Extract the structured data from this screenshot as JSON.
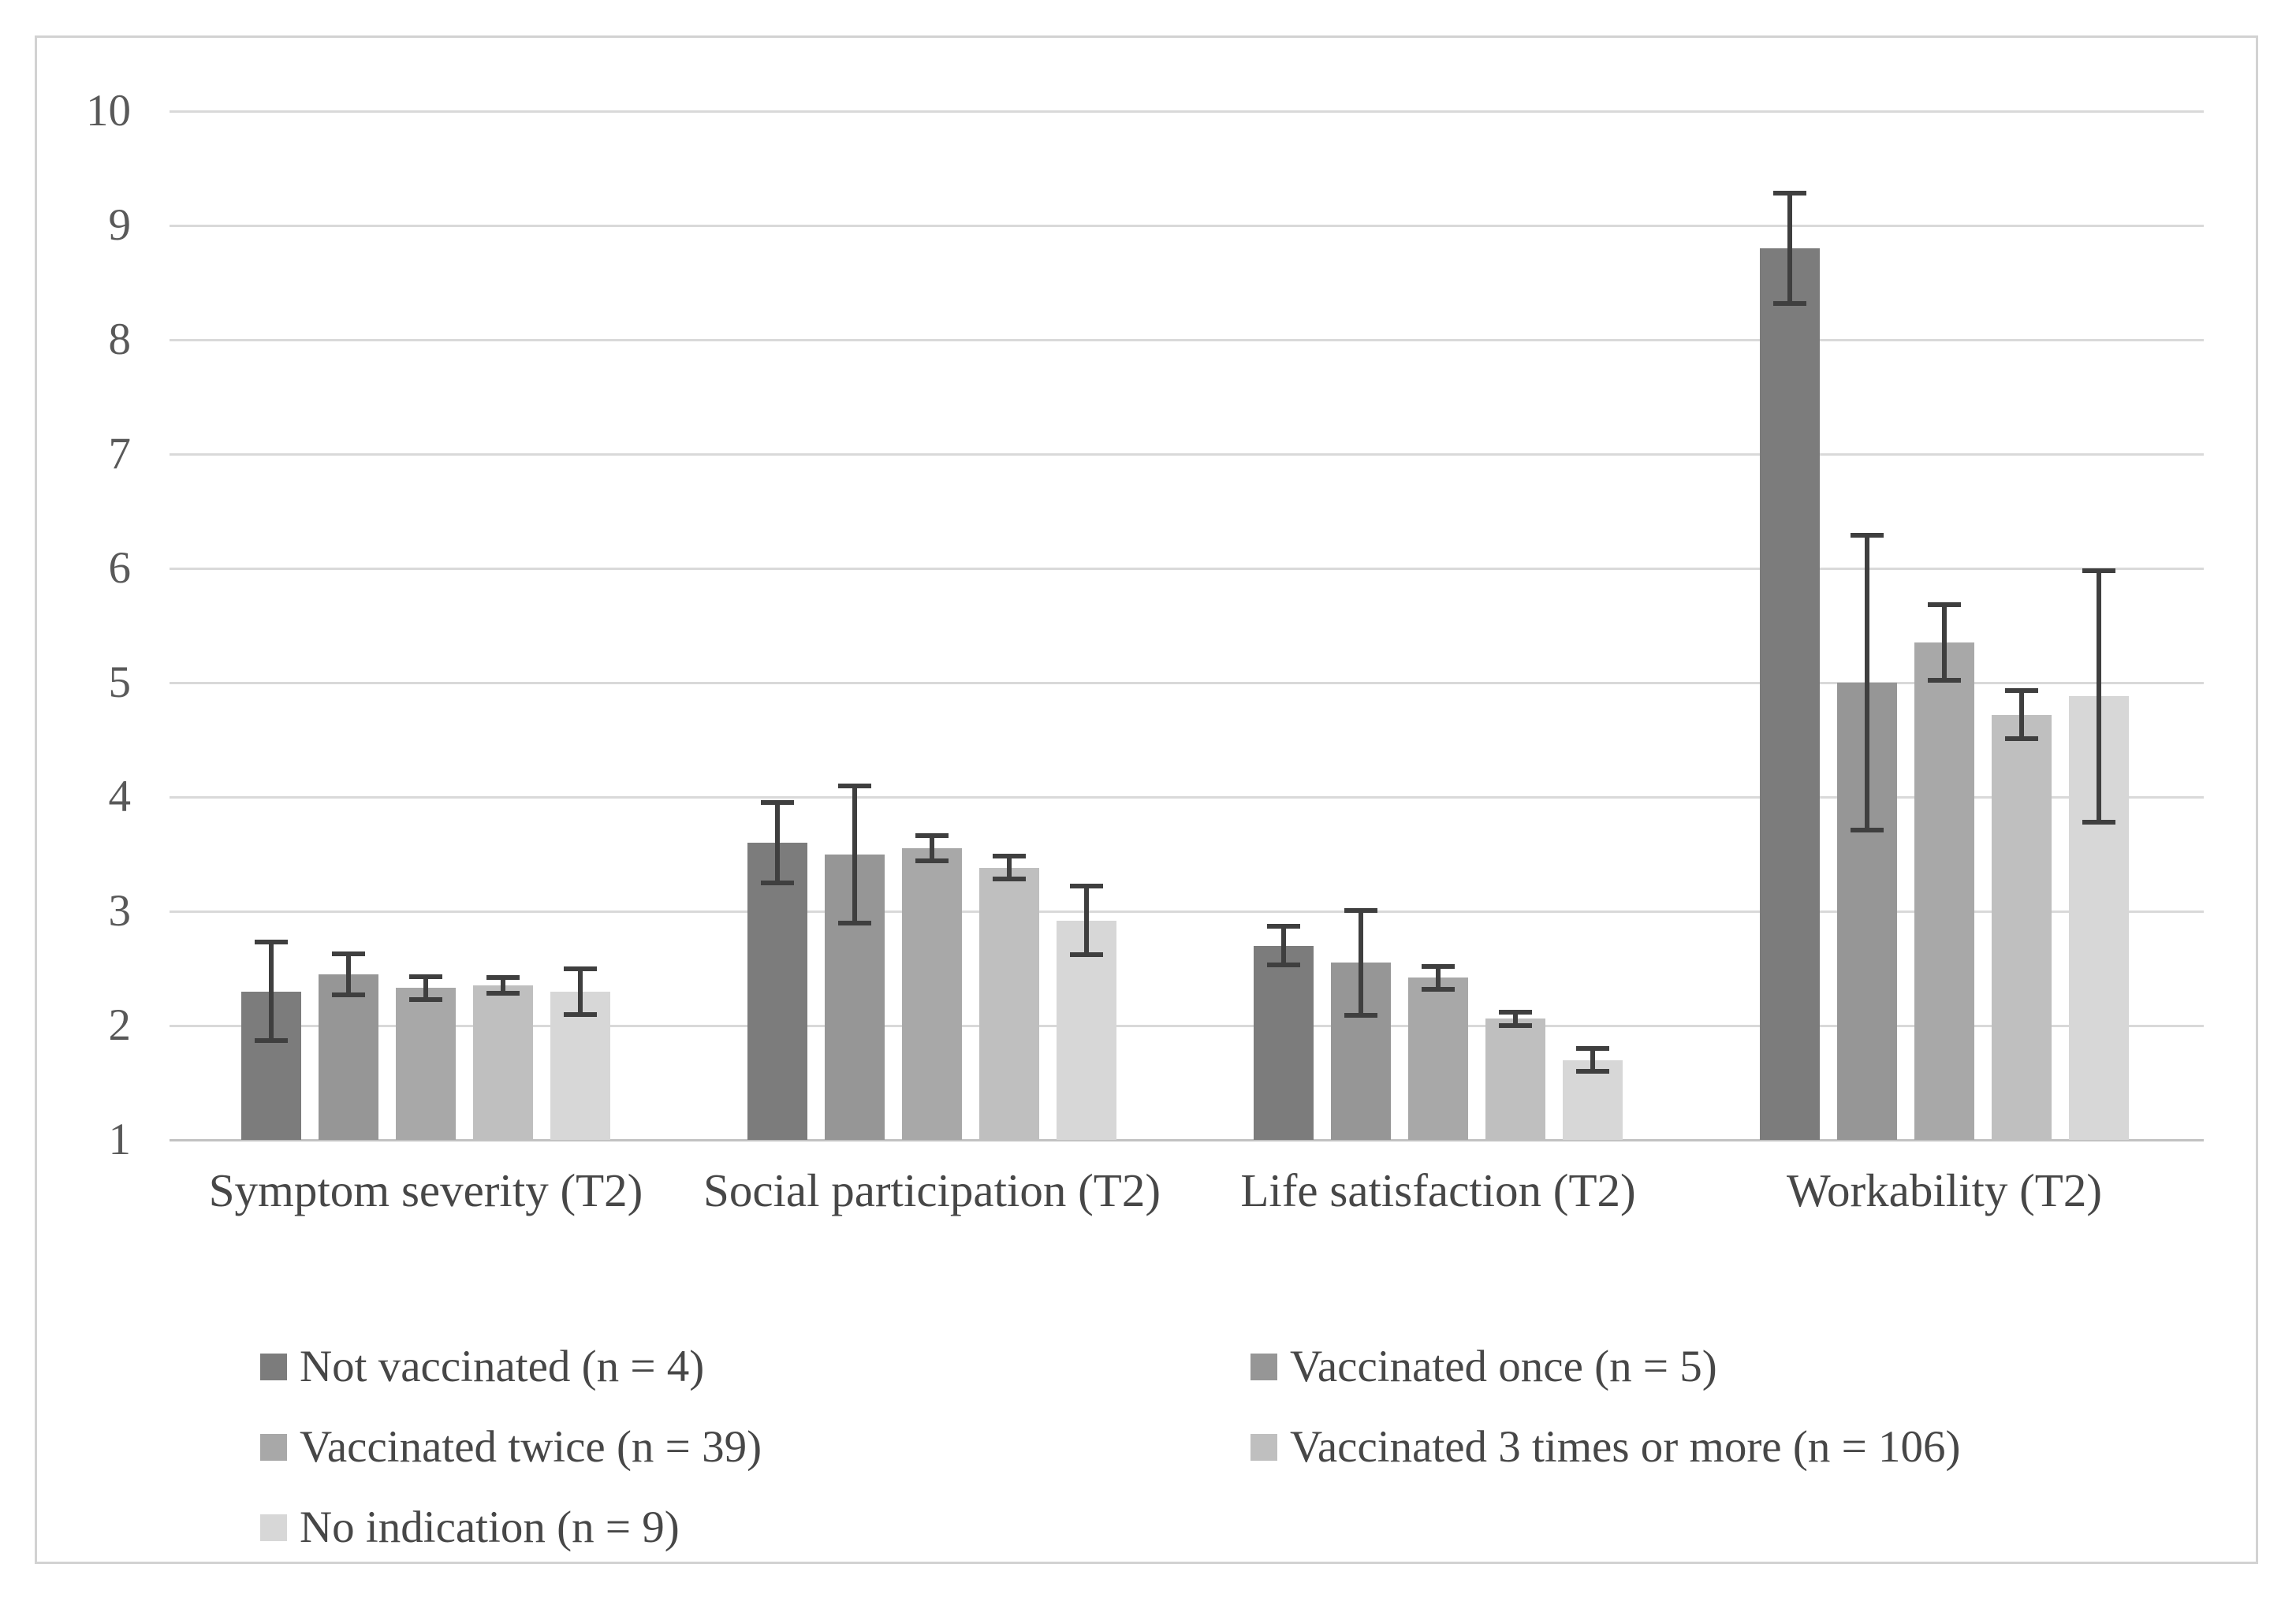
{
  "figure": {
    "background": "#ffffff",
    "frame_border_color": "#d2d2d2",
    "gridline_color": "#d9d9d9",
    "baseline_color": "#c2c2c2",
    "error_bar_color": "#3f3f3f",
    "tick_label_color": "#595959",
    "category_label_color": "#474747"
  },
  "chart_data": {
    "type": "bar",
    "title": "",
    "xlabel": "",
    "ylabel": "",
    "ylim": [
      1,
      10
    ],
    "yticks": [
      1,
      2,
      3,
      4,
      5,
      6,
      7,
      8,
      9,
      10
    ],
    "grid": true,
    "legend_position": "bottom",
    "error_bars": true,
    "categories": [
      "Symptom severity (T2)",
      "Social participation (T2)",
      "Life satisfaction (T2)",
      "Workability (T2)"
    ],
    "series": [
      {
        "name": "Not vaccinated (n = 4)",
        "color": "#7c7c7c",
        "values": [
          2.3,
          3.6,
          2.7,
          8.8
        ],
        "errors": [
          0.43,
          0.35,
          0.17,
          0.48
        ]
      },
      {
        "name": "Vaccinated once (n = 5)",
        "color": "#969696",
        "values": [
          2.45,
          3.5,
          2.55,
          5.0
        ],
        "errors": [
          0.18,
          0.6,
          0.46,
          1.29
        ]
      },
      {
        "name": "Vaccinated twice (n = 39)",
        "color": "#a8a8a8",
        "values": [
          2.33,
          3.55,
          2.42,
          5.35
        ],
        "errors": [
          0.1,
          0.11,
          0.1,
          0.33
        ]
      },
      {
        "name": "Vaccinated 3 times or more (n = 106)",
        "color": "#bfbfbf",
        "values": [
          2.35,
          3.38,
          2.06,
          4.72
        ],
        "errors": [
          0.07,
          0.1,
          0.06,
          0.21
        ]
      },
      {
        "name": "No indication (n = 9)",
        "color": "#d7d7d7",
        "values": [
          2.3,
          2.92,
          1.7,
          4.88
        ],
        "errors": [
          0.2,
          0.3,
          0.1,
          1.1
        ]
      }
    ]
  },
  "legend": {
    "rows": [
      [
        0,
        1
      ],
      [
        2,
        3
      ],
      [
        4
      ]
    ]
  }
}
